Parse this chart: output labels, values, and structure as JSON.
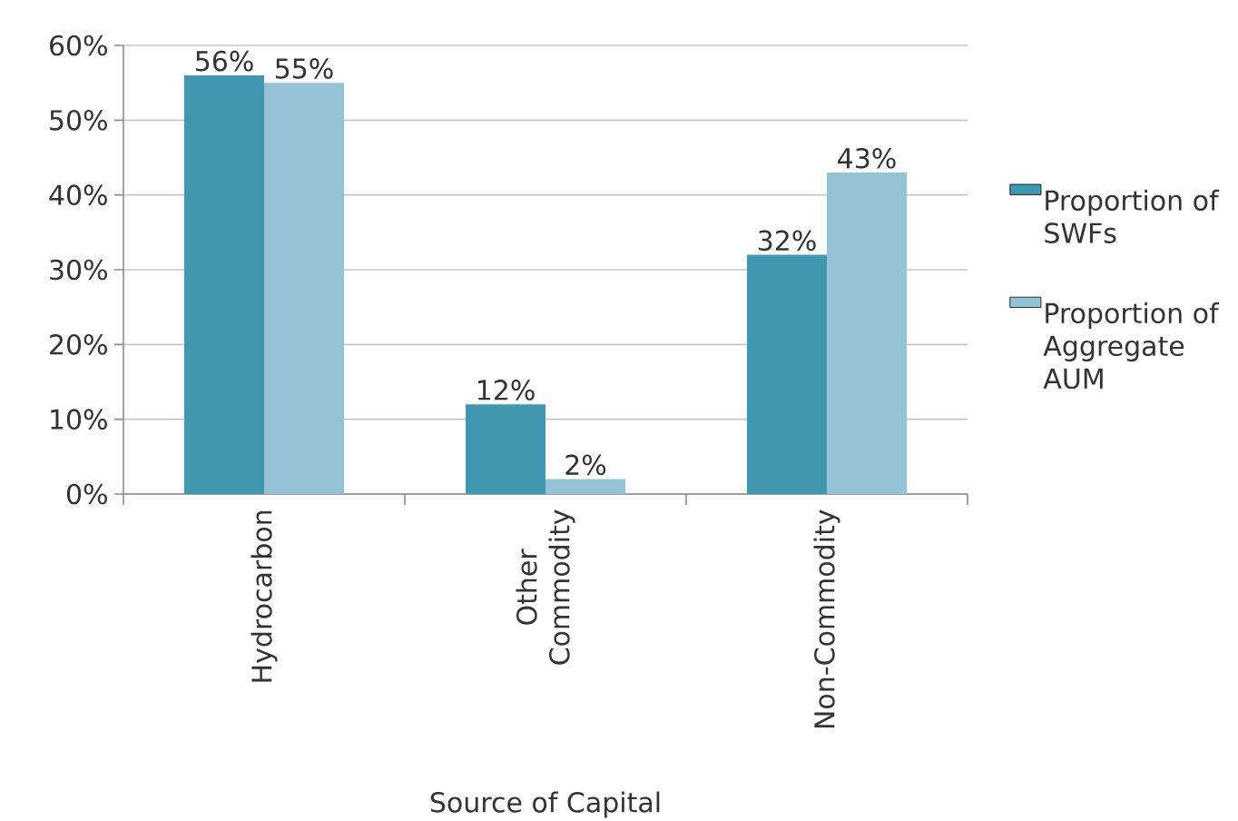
{
  "chart_data": {
    "type": "bar",
    "xlabel": "Source of Capital",
    "categories": [
      "Hydrocarbon",
      "Other Commodity",
      "Non-Commodity"
    ],
    "series": [
      {
        "name": "Proportion of SWFs",
        "color": "#4297b0",
        "values": [
          56,
          12,
          32
        ],
        "value_labels": [
          "56%",
          "12%",
          "32%"
        ]
      },
      {
        "name": "Proportion of Aggregate AUM",
        "color": "#93c3d5",
        "values": [
          55,
          2,
          43
        ],
        "value_labels": [
          "55%",
          "2%",
          "43%"
        ]
      }
    ],
    "ylim": [
      0,
      60
    ],
    "yticks": [
      {
        "value": 0,
        "label": "0%"
      },
      {
        "value": 10,
        "label": "10%"
      },
      {
        "value": 20,
        "label": "20%"
      },
      {
        "value": 30,
        "label": "30%"
      },
      {
        "value": 40,
        "label": "40%"
      },
      {
        "value": 50,
        "label": "50%"
      },
      {
        "value": 60,
        "label": "60%"
      }
    ],
    "grid": "y",
    "legend": "right"
  }
}
